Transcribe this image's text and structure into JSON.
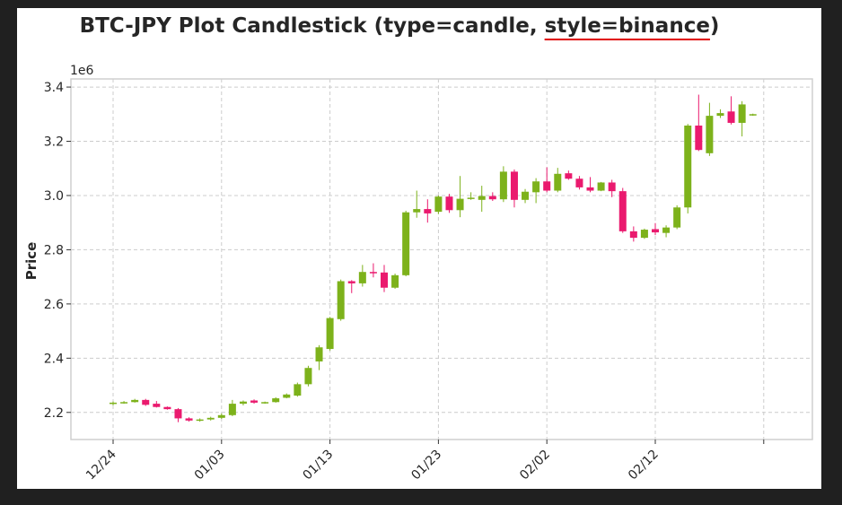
{
  "chart_data": {
    "type": "candlestick",
    "title": "BTC-JPY Plot Candlestick (type=candle, style=binance)",
    "title_underlined_part": "style=binance",
    "ylabel": "Price",
    "y_offset_label": "1e6",
    "ylim": [
      2.1,
      3.43
    ],
    "y_ticks": [
      2.2,
      2.4,
      2.6,
      2.8,
      3.0,
      3.2,
      3.4
    ],
    "y_tick_labels": [
      "2.2",
      "2.4",
      "2.6",
      "2.8",
      "3.0",
      "3.2",
      "3.4"
    ],
    "x_tick_labels": [
      "12/24",
      "01/03",
      "01/13",
      "01/23",
      "02/02",
      "02/12",
      ""
    ],
    "x_tick_dates": [
      "2020-12-24",
      "2021-01-03",
      "2021-01-13",
      "2021-01-23",
      "2021-02-02",
      "2021-02-12",
      "2021-02-22"
    ],
    "grid": true,
    "up_color": "#7db21b",
    "down_color": "#ea1a6e",
    "title_underline_color": "#e00000",
    "candles": [
      {
        "date": "2020-12-24",
        "open": 2.232,
        "high": 2.24,
        "low": 2.226,
        "close": 2.236
      },
      {
        "date": "2020-12-25",
        "open": 2.236,
        "high": 2.242,
        "low": 2.232,
        "close": 2.238
      },
      {
        "date": "2020-12-26",
        "open": 2.238,
        "high": 2.25,
        "low": 2.236,
        "close": 2.246
      },
      {
        "date": "2020-12-27",
        "open": 2.246,
        "high": 2.25,
        "low": 2.224,
        "close": 2.228
      },
      {
        "date": "2020-12-28",
        "open": 2.232,
        "high": 2.242,
        "low": 2.218,
        "close": 2.22
      },
      {
        "date": "2020-12-29",
        "open": 2.22,
        "high": 2.222,
        "low": 2.21,
        "close": 2.212
      },
      {
        "date": "2020-12-30",
        "open": 2.212,
        "high": 2.216,
        "low": 2.164,
        "close": 2.178
      },
      {
        "date": "2020-12-31",
        "open": 2.178,
        "high": 2.182,
        "low": 2.166,
        "close": 2.17
      },
      {
        "date": "2021-01-01",
        "open": 2.17,
        "high": 2.178,
        "low": 2.166,
        "close": 2.174
      },
      {
        "date": "2021-01-02",
        "open": 2.174,
        "high": 2.184,
        "low": 2.17,
        "close": 2.18
      },
      {
        "date": "2021-01-03",
        "open": 2.18,
        "high": 2.196,
        "low": 2.176,
        "close": 2.19
      },
      {
        "date": "2021-01-04",
        "open": 2.19,
        "high": 2.246,
        "low": 2.186,
        "close": 2.232
      },
      {
        "date": "2021-01-05",
        "open": 2.232,
        "high": 2.244,
        "low": 2.226,
        "close": 2.24
      },
      {
        "date": "2021-01-06",
        "open": 2.244,
        "high": 2.248,
        "low": 2.232,
        "close": 2.236
      },
      {
        "date": "2021-01-07",
        "open": 2.236,
        "high": 2.24,
        "low": 2.232,
        "close": 2.238
      },
      {
        "date": "2021-01-08",
        "open": 2.238,
        "high": 2.256,
        "low": 2.236,
        "close": 2.252
      },
      {
        "date": "2021-01-09",
        "open": 2.254,
        "high": 2.27,
        "low": 2.252,
        "close": 2.266
      },
      {
        "date": "2021-01-10",
        "open": 2.262,
        "high": 2.31,
        "low": 2.258,
        "close": 2.304
      },
      {
        "date": "2021-01-11",
        "open": 2.304,
        "high": 2.372,
        "low": 2.296,
        "close": 2.364
      },
      {
        "date": "2021-01-12",
        "open": 2.388,
        "high": 2.448,
        "low": 2.356,
        "close": 2.44
      },
      {
        "date": "2021-01-13",
        "open": 2.434,
        "high": 2.552,
        "low": 2.428,
        "close": 2.548
      },
      {
        "date": "2021-01-14",
        "open": 2.544,
        "high": 2.69,
        "low": 2.538,
        "close": 2.684
      },
      {
        "date": "2021-01-15",
        "open": 2.684,
        "high": 2.688,
        "low": 2.64,
        "close": 2.676
      },
      {
        "date": "2021-01-16",
        "open": 2.676,
        "high": 2.744,
        "low": 2.664,
        "close": 2.718
      },
      {
        "date": "2021-01-17",
        "open": 2.718,
        "high": 2.75,
        "low": 2.698,
        "close": 2.714
      },
      {
        "date": "2021-01-18",
        "open": 2.716,
        "high": 2.744,
        "low": 2.644,
        "close": 2.66
      },
      {
        "date": "2021-01-19",
        "open": 2.66,
        "high": 2.712,
        "low": 2.656,
        "close": 2.706
      },
      {
        "date": "2021-01-20",
        "open": 2.706,
        "high": 2.944,
        "low": 2.702,
        "close": 2.938
      },
      {
        "date": "2021-01-21",
        "open": 2.938,
        "high": 3.018,
        "low": 2.918,
        "close": 2.95
      },
      {
        "date": "2021-01-22",
        "open": 2.95,
        "high": 2.986,
        "low": 2.9,
        "close": 2.934
      },
      {
        "date": "2021-01-23",
        "open": 2.94,
        "high": 3.0,
        "low": 2.932,
        "close": 2.996
      },
      {
        "date": "2021-01-24",
        "open": 2.996,
        "high": 3.006,
        "low": 2.936,
        "close": 2.946
      },
      {
        "date": "2021-01-25",
        "open": 2.946,
        "high": 3.072,
        "low": 2.92,
        "close": 2.988
      },
      {
        "date": "2021-01-26",
        "open": 2.988,
        "high": 3.012,
        "low": 2.984,
        "close": 2.992
      },
      {
        "date": "2021-01-27",
        "open": 2.984,
        "high": 3.036,
        "low": 2.94,
        "close": 2.998
      },
      {
        "date": "2021-01-28",
        "open": 2.998,
        "high": 3.012,
        "low": 2.98,
        "close": 2.986
      },
      {
        "date": "2021-01-29",
        "open": 2.986,
        "high": 3.108,
        "low": 2.976,
        "close": 3.088
      },
      {
        "date": "2021-01-30",
        "open": 3.088,
        "high": 3.096,
        "low": 2.956,
        "close": 2.984
      },
      {
        "date": "2021-01-31",
        "open": 2.984,
        "high": 3.024,
        "low": 2.972,
        "close": 3.014
      },
      {
        "date": "2021-02-01",
        "open": 3.012,
        "high": 3.064,
        "low": 2.972,
        "close": 3.052
      },
      {
        "date": "2021-02-02",
        "open": 3.052,
        "high": 3.104,
        "low": 3.012,
        "close": 3.018
      },
      {
        "date": "2021-02-03",
        "open": 3.018,
        "high": 3.102,
        "low": 3.012,
        "close": 3.08
      },
      {
        "date": "2021-02-04",
        "open": 3.082,
        "high": 3.092,
        "low": 3.058,
        "close": 3.062
      },
      {
        "date": "2021-02-05",
        "open": 3.062,
        "high": 3.072,
        "low": 3.022,
        "close": 3.03
      },
      {
        "date": "2021-02-06",
        "open": 3.03,
        "high": 3.068,
        "low": 3.012,
        "close": 3.018
      },
      {
        "date": "2021-02-07",
        "open": 3.018,
        "high": 3.05,
        "low": 3.016,
        "close": 3.048
      },
      {
        "date": "2021-02-08",
        "open": 3.048,
        "high": 3.058,
        "low": 2.994,
        "close": 3.016
      },
      {
        "date": "2021-02-09",
        "open": 3.016,
        "high": 3.028,
        "low": 2.862,
        "close": 2.868
      },
      {
        "date": "2021-02-10",
        "open": 2.868,
        "high": 2.886,
        "low": 2.83,
        "close": 2.844
      },
      {
        "date": "2021-02-11",
        "open": 2.844,
        "high": 2.878,
        "low": 2.84,
        "close": 2.874
      },
      {
        "date": "2021-02-12",
        "open": 2.876,
        "high": 2.898,
        "low": 2.854,
        "close": 2.864
      },
      {
        "date": "2021-02-13",
        "open": 2.862,
        "high": 2.89,
        "low": 2.846,
        "close": 2.882
      },
      {
        "date": "2021-02-14",
        "open": 2.882,
        "high": 2.964,
        "low": 2.876,
        "close": 2.956
      },
      {
        "date": "2021-02-15",
        "open": 2.956,
        "high": 3.264,
        "low": 2.934,
        "close": 3.258
      },
      {
        "date": "2021-02-16",
        "open": 3.258,
        "high": 3.372,
        "low": 3.164,
        "close": 3.168
      },
      {
        "date": "2021-02-17",
        "open": 3.156,
        "high": 3.342,
        "low": 3.146,
        "close": 3.294
      },
      {
        "date": "2021-02-18",
        "open": 3.294,
        "high": 3.318,
        "low": 3.286,
        "close": 3.304
      },
      {
        "date": "2021-02-19",
        "open": 3.31,
        "high": 3.366,
        "low": 3.262,
        "close": 3.268
      },
      {
        "date": "2021-02-20",
        "open": 3.268,
        "high": 3.348,
        "low": 3.218,
        "close": 3.336
      },
      {
        "date": "2021-02-21",
        "open": 3.298,
        "high": 3.302,
        "low": 3.294,
        "close": 3.3
      }
    ]
  }
}
